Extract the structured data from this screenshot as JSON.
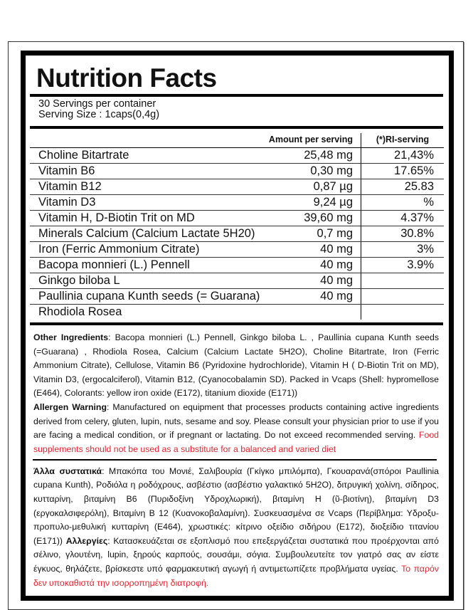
{
  "title": "Nutrition Facts",
  "servings_per_container": "30 Servings per container",
  "serving_size": "Serving Size : 1caps(0,4g)",
  "table": {
    "headers": [
      "",
      "Amount per serving",
      "(*)RI-serving"
    ],
    "rows": [
      {
        "name": "Choline Bitartrate",
        "amount": "25,48 mg",
        "ri": "21,43%"
      },
      {
        "name": "Vitamin B6",
        "amount": "0,30 mg",
        "ri": "17.65%"
      },
      {
        "name": "Vitamin B12",
        "amount": "0,87 µg",
        "ri": "25.83"
      },
      {
        "name": "Vitamin D3",
        "amount": "9,24 µg",
        "ri": "%"
      },
      {
        "name": "Vitamin H, D-Biotin Trit on MD",
        "amount": "39,60 mg",
        "ri": "4.37%"
      },
      {
        "name": "Minerals Calcium (Calcium Lactate 5H20)",
        "amount": "0,7 mg",
        "ri": "30.8%"
      },
      {
        "name": "Iron (Ferric Ammonium Citrate)",
        "amount": "40 mg",
        "ri": "3%"
      },
      {
        "name": "Bacopa monnieri (L.) Pennell",
        "amount": "40 mg",
        "ri": "3.9%"
      },
      {
        "name": "Ginkgo biloba L",
        "amount": "40 mg",
        "ri": ""
      },
      {
        "name": "Paullinia cupana Kunth seeds (= Guarana)",
        "amount": "40 mg",
        "ri": ""
      },
      {
        "name": "Rhodiola Rosea",
        "amount": "",
        "ri": ""
      }
    ]
  },
  "english": {
    "other_label": "Other Ingredients",
    "other_text": ": Bacopa monnieri (L.) Pennell, Ginkgo biloba L. , Paullinia cupana Kunth seeds (=Guarana) , Rhodiola Rosea, Calcium (Calcium Lactate 5H2O), Choline Bitartrate, Iron (Ferric Ammonium Citrate), Cellulose, Vitamin B6 (Pyridoxine hydrochloride), Vitamin H ( D-Biotin Trit on MD), Vitamin D3, (ergocalciferol), Vitamin B12, (Cyanocobalamin SD). Packed in Vcaps (Shell: hypromellose (E464), Colorants: yellow iron oxide (E172), titanium dioxide (E171))",
    "allergen_label": "Allergen Warning",
    "allergen_text": ": Manufactured on equipment that processes products containing active ingredients derived from celery, gluten, lupin, nuts, sesame and soy. Please consult your physician prior to use if you are facing a medical condition, or if pregnant or lactating. Do not exceed recommended serving. ",
    "warning_red": "Food supplements should not be used as a substitute for a balanced and varied diet"
  },
  "greek": {
    "other_label": "Άλλα συστατικά",
    "other_text": ": Μπακόπα του Μονιέ, Σαλιβουρία (Γκίγκο μπιλόμπα), Γκουαρανά(σπόροι Paullinia cupana Kunth), Ροδιόλα η ροδόχρους, ασβέστιο (ασβέστιο γαλακτικό 5H2O), διτρυγική χολίνη, σίδηρος, κυτταρίνη, βιταμίνη Β6 (Πυριδοξίνη Υδροχλωρική), βιταμίνη Η (ῦ-βιοτίνη), βιταμίνη D3 (εργοκαλσιφερόλη), Βιταμίνη Β 12 (Κυανοκοβαλαμίνη). Συσκευασμένα σε Vcaps (Περίβλημα: Υδροξυ-προπυλο-μεθυλική κυτταρίνη (Ε464), χρωστικές: κίτρινο οξείδιο σιδήρου (Ε172), διοξείδιο τιτανίου (Ε171)) ",
    "allergen_label": "Αλλεργίες",
    "allergen_text": ": Κατασκευάζεται σε εξοπλισμό που επεξεργάζεται συστατικά που προέρχονται από σέλινο, γλουτένη, lupin, ξηρούς καρπούς, σουσάμι, σόγια. Συμβουλευτείτε τον γιατρό σας αν είστε έγκυος, θηλάζετε, βρίσκεστε υπό φαρμακευτική αγωγή ή αντιμετωπίζετε προβλήματα υγείας. ",
    "warning_red": "Το παρόν δεν υποκαθιστά την ισορροπημένη διατροφή."
  },
  "colors": {
    "warning": "#e8232a",
    "border": "#000000"
  }
}
